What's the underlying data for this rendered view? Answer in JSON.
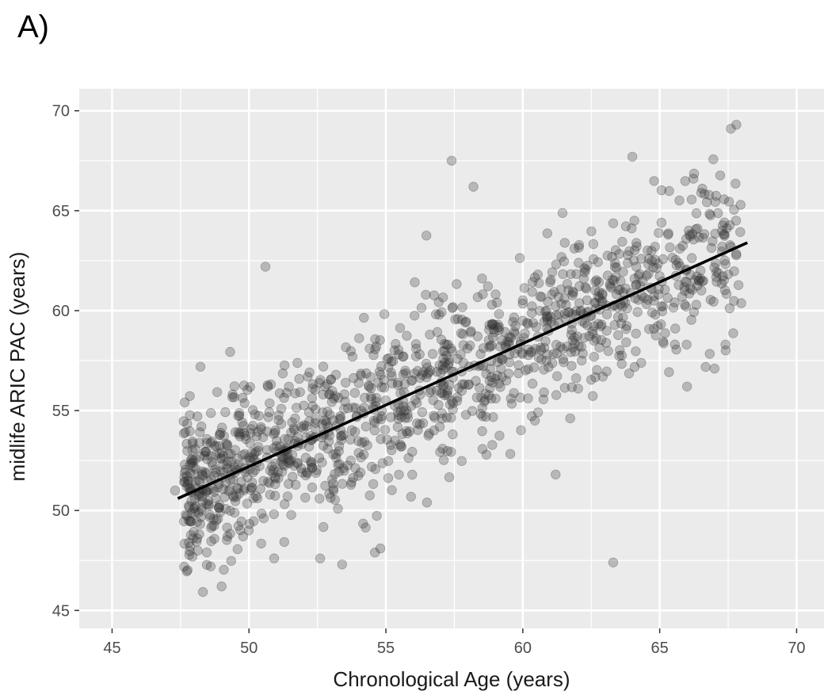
{
  "panel_label": "A)",
  "chart_data": {
    "type": "scatter",
    "xlabel": "Chronological Age (years)",
    "ylabel": "midlife ARIC PAC (years)",
    "xlim": [
      43.8,
      71.0
    ],
    "ylim": [
      44.1,
      71.1
    ],
    "xticks": [
      45,
      50,
      55,
      60,
      65,
      70
    ],
    "yticks": [
      45,
      50,
      55,
      60,
      65,
      70
    ],
    "grid": true,
    "colors": {
      "panel_bg": "#ebebeb",
      "grid": "#ffffff",
      "point": "#333333",
      "line": "#000000"
    },
    "point_opacity": 0.28,
    "fit_line": {
      "x": [
        47.4,
        68.2
      ],
      "y": [
        50.6,
        63.4
      ]
    },
    "highlighted_points": [
      [
        57.4,
        67.5
      ],
      [
        58.2,
        66.2
      ],
      [
        64.0,
        67.7
      ],
      [
        67.6,
        69.1
      ],
      [
        67.8,
        69.3
      ],
      [
        50.6,
        62.2
      ],
      [
        63.3,
        47.4
      ],
      [
        61.2,
        51.8
      ],
      [
        49.0,
        46.2
      ],
      [
        53.4,
        47.3
      ],
      [
        54.8,
        48.1
      ],
      [
        54.6,
        47.9
      ],
      [
        47.3,
        51.0
      ],
      [
        67.0,
        57.1
      ],
      [
        67.4,
        58.3
      ],
      [
        66.0,
        56.2
      ],
      [
        52.6,
        47.6
      ],
      [
        56.5,
        50.4
      ],
      [
        48.6,
        47.2
      ],
      [
        47.8,
        49.5
      ]
    ],
    "cloud": {
      "n": 1300,
      "x_range": [
        47.6,
        68.0
      ],
      "slope": 0.615,
      "intercept_at_x0": 50.6,
      "x0": 47.4,
      "residual_sd": 2.05,
      "seed": 17
    }
  }
}
